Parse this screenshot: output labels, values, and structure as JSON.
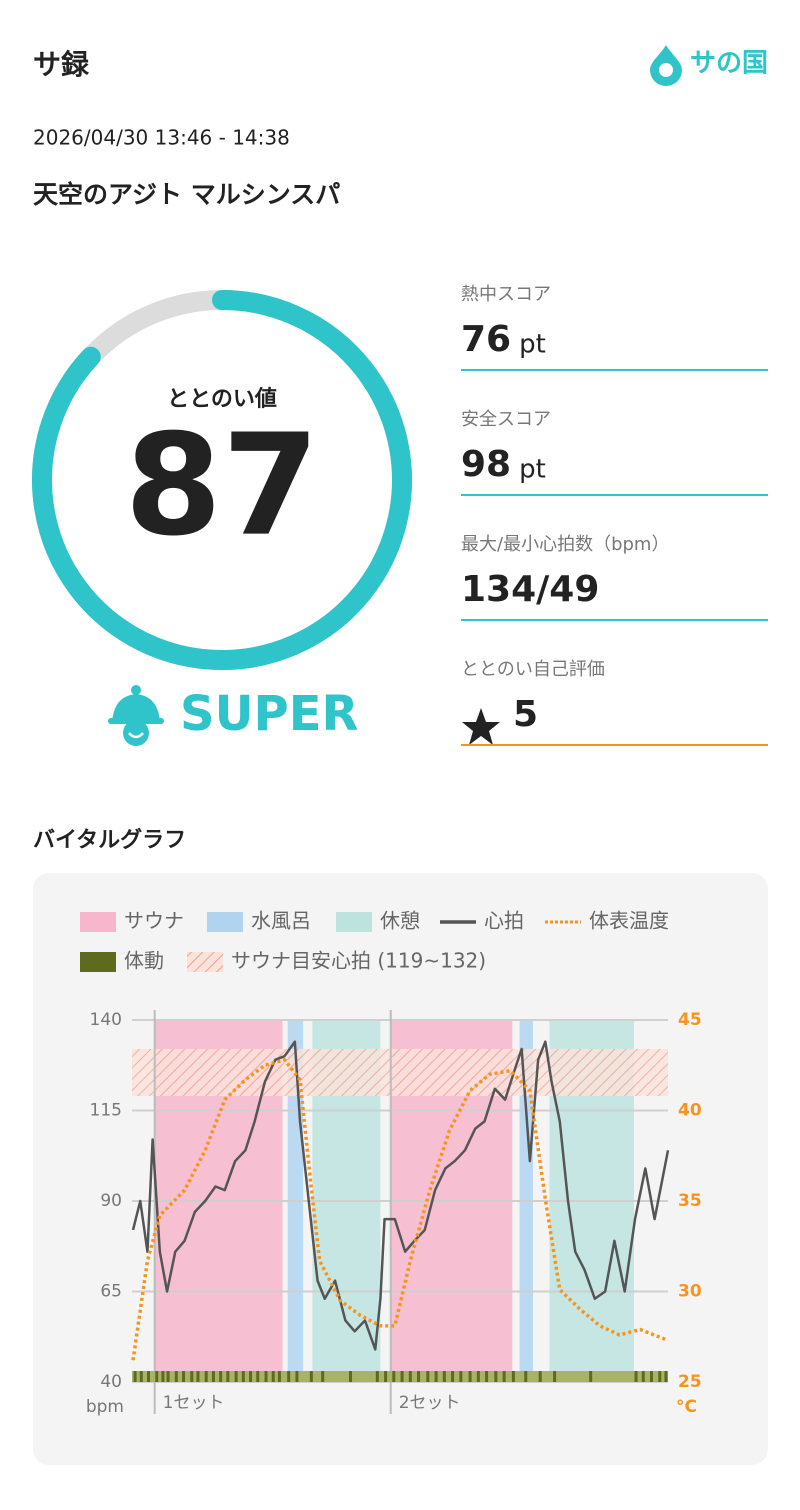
{
  "header": {
    "title": "サ録",
    "logo": "サの国"
  },
  "session": {
    "datetime": "2026/04/30 13:46 - 14:38",
    "facility": "天空のアジト マルシンスパ"
  },
  "score": {
    "label": "ととのい値",
    "value": 87,
    "range": [
      0,
      100
    ],
    "rank": "SUPER"
  },
  "stats": [
    {
      "label": "熱中スコア",
      "value": 76,
      "unit": "pt"
    },
    {
      "label": "安全スコア",
      "value": 98,
      "unit": "pt"
    },
    {
      "label": "最大/最小心拍数（bpm）",
      "value": "134/49"
    },
    {
      "label": "ととのい自己評価",
      "value": 5
    }
  ],
  "chart_data": {
    "type": "line",
    "title": "バイタルグラフ",
    "xlim": [
      0,
      52
    ],
    "ylim": [
      40,
      140
    ],
    "yticks": [
      40,
      65,
      90,
      115,
      140
    ],
    "y2lim": [
      25,
      45
    ],
    "y2ticks": [
      25,
      30,
      35,
      40,
      45
    ],
    "ylabel": "bpm",
    "y2label": "°C",
    "grid": true,
    "series": [
      {
        "name": "心拍",
        "color": "#555555",
        "x": [
          0.1,
          0.8,
          1.5,
          2.0,
          2.7,
          3.4,
          4.2,
          5.1,
          6.1,
          7.1,
          8.1,
          9.0,
          10.0,
          11.0,
          11.9,
          12.9,
          13.9,
          14.8,
          15.8,
          16.3,
          16.8,
          18.0,
          18.7,
          19.7,
          20.7,
          21.6,
          22.6,
          23.6,
          24.1,
          24.5,
          25.5,
          26.5,
          27.4,
          28.4,
          29.4,
          30.4,
          31.3,
          32.3,
          33.3,
          34.2,
          35.2,
          36.2,
          37.1,
          37.8,
          38.6,
          39.4,
          40.1,
          40.7,
          41.5,
          42.3,
          43.0,
          43.9,
          44.9,
          45.9,
          46.8,
          47.8,
          48.8,
          49.8,
          50.7,
          52.0
        ],
        "values": [
          82,
          90,
          76,
          107,
          76,
          65,
          76,
          79,
          87,
          90,
          94,
          93,
          101,
          104,
          112,
          123,
          129,
          130,
          134,
          112,
          99,
          68,
          63,
          68,
          57,
          54,
          57,
          49,
          63,
          85,
          85,
          76,
          79,
          82,
          93,
          99,
          101,
          104,
          110,
          112,
          121,
          118,
          126,
          132,
          101,
          129,
          134,
          123,
          112,
          90,
          76,
          71,
          63,
          65,
          79,
          65,
          85,
          99,
          85,
          104
        ]
      },
      {
        "name": "体表温度",
        "color": "#f7941d",
        "axis": "y2",
        "x": [
          0.1,
          1.5,
          2.7,
          5.1,
          7.1,
          9.0,
          11.0,
          12.9,
          14.8,
          16.3,
          17.3,
          18.2,
          20.2,
          22.1,
          24.1,
          25.5,
          27.0,
          28.9,
          30.8,
          32.8,
          34.7,
          36.7,
          38.6,
          40.1,
          41.5,
          43.5,
          45.4,
          47.3,
          49.3,
          52.0
        ],
        "values": [
          26.2,
          31.7,
          34.2,
          35.6,
          37.8,
          40.6,
          41.7,
          42.5,
          42.8,
          41.7,
          36.2,
          31.7,
          29.5,
          28.7,
          28.1,
          28.1,
          31.7,
          35.6,
          38.9,
          41.1,
          42.0,
          42.2,
          41.1,
          35.1,
          30.1,
          29.0,
          28.1,
          27.6,
          27.9,
          27.3
        ]
      }
    ],
    "phases": [
      {
        "name": "サウナ",
        "color": "#f7b6cb",
        "ranges": [
          [
            2.2,
            14.6
          ],
          [
            25.1,
            36.9
          ]
        ]
      },
      {
        "name": "水風呂",
        "color": "#b0d3f0",
        "ranges": [
          [
            15.1,
            16.6
          ],
          [
            37.6,
            38.9
          ]
        ]
      },
      {
        "name": "休憩",
        "color": "#bde3df",
        "ranges": [
          [
            17.5,
            24.1
          ],
          [
            40.5,
            48.7
          ]
        ]
      }
    ],
    "target_band": {
      "label": "サウナ目安心拍 (119~132)",
      "range": [
        119,
        132
      ],
      "color": "#f0a08c"
    },
    "motion": {
      "name": "体動",
      "color": "#5e6b1f",
      "x": [
        0.3,
        0.9,
        1.6,
        2.4,
        3.0,
        3.5,
        4.3,
        5.0,
        5.8,
        6.4,
        7.2,
        7.9,
        8.6,
        9.3,
        10.1,
        10.8,
        11.5,
        12.2,
        13.0,
        13.7,
        14.3,
        15.2,
        16.0,
        17.4,
        18.5,
        21.2,
        23.8,
        24.6,
        25.4,
        26.2,
        27.0,
        27.8,
        28.7,
        29.5,
        30.3,
        31.1,
        31.9,
        32.8,
        33.6,
        34.4,
        35.3,
        36.1,
        37.0,
        38.2,
        39.6,
        41.0,
        44.5,
        48.9,
        49.6,
        50.4,
        51.2,
        51.8
      ]
    },
    "sets": [
      {
        "label": "1セット",
        "x": 2.2
      },
      {
        "label": "2セット",
        "x": 25.1
      }
    ]
  }
}
